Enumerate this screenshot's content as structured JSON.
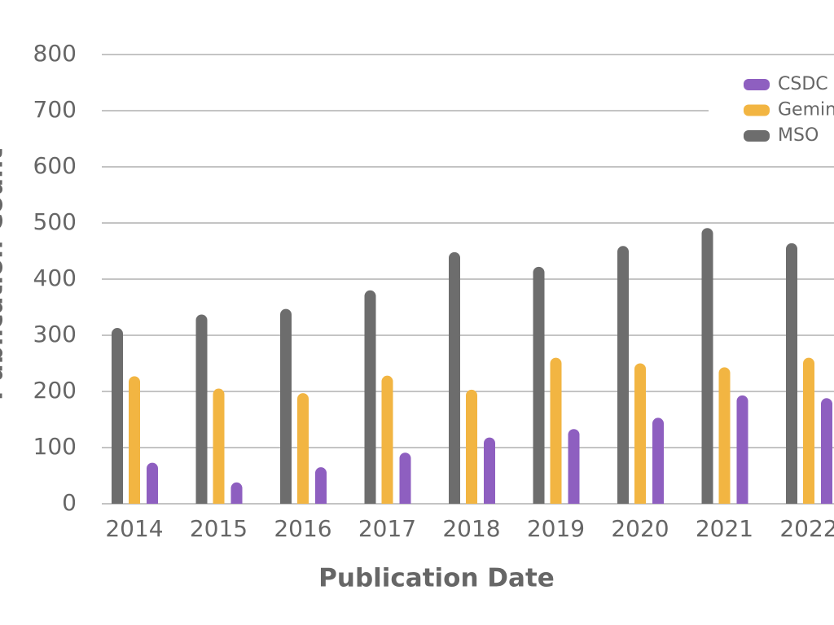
{
  "chart_data": {
    "type": "bar",
    "x_label": "Publication Date",
    "y_label": "Publication Count",
    "categories": [
      "2014",
      "2015",
      "2016",
      "2017",
      "2018",
      "2019",
      "2020",
      "2021",
      "2022"
    ],
    "series": [
      {
        "name": "CSDC",
        "color": "#8e5fc0",
        "values": [
          73,
          38,
          65,
          91,
          118,
          133,
          153,
          193,
          188
        ]
      },
      {
        "name": "Gemini",
        "color": "#f2b542",
        "values": [
          227,
          205,
          197,
          228,
          203,
          260,
          250,
          243,
          260
        ]
      },
      {
        "name": "MSO",
        "color": "#6d6d6d",
        "values": [
          313,
          337,
          347,
          380,
          448,
          422,
          459,
          491,
          464
        ]
      }
    ],
    "ylim": [
      0,
      800
    ],
    "yticks": [
      0,
      100,
      200,
      300,
      400,
      500,
      600,
      700,
      800
    ],
    "grid": true
  }
}
